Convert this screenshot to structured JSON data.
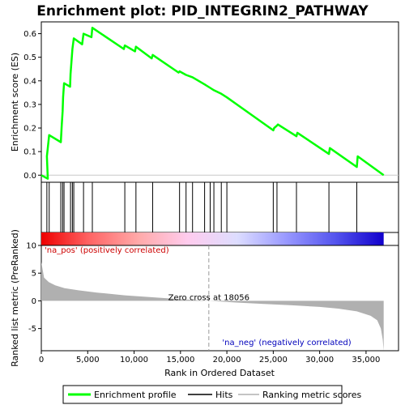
{
  "chart_data": {
    "type": "line",
    "title": "Enrichment plot: PID_INTEGRIN2_PATHWAY",
    "xlabel": "Rank in Ordered Dataset",
    "es_panel": {
      "ylabel": "Enrichment score (ES)",
      "ylim": [
        -0.03,
        0.65
      ],
      "yticks": [
        0.0,
        0.1,
        0.2,
        0.3,
        0.4,
        0.5,
        0.6
      ],
      "ytick_labels": [
        "0.0",
        "0.1",
        "0.2",
        "0.3",
        "0.4",
        "0.5",
        "0.6"
      ],
      "series": [
        {
          "name": "Enrichment profile",
          "color": "#00ff00",
          "x": [
            0,
            700,
            600,
            850,
            2100,
            2200,
            2300,
            2350,
            2450,
            3100,
            3150,
            3250,
            3350,
            3500,
            4400,
            4550,
            5400,
            5500,
            8900,
            9000,
            10100,
            10200,
            11900,
            12000,
            14800,
            14900,
            15600,
            16300,
            17600,
            18200,
            18600,
            19400,
            20000,
            25000,
            25100,
            25400,
            25500,
            27500,
            27600,
            31000,
            31100,
            34000,
            34100,
            36900
          ],
          "y": [
            0.0,
            -0.015,
            0.08,
            0.17,
            0.14,
            0.21,
            0.27,
            0.33,
            0.39,
            0.375,
            0.43,
            0.48,
            0.535,
            0.58,
            0.555,
            0.6,
            0.585,
            0.625,
            0.535,
            0.55,
            0.525,
            0.545,
            0.495,
            0.51,
            0.435,
            0.44,
            0.425,
            0.415,
            0.385,
            0.37,
            0.36,
            0.345,
            0.33,
            0.19,
            0.2,
            0.21,
            0.215,
            0.165,
            0.18,
            0.09,
            0.115,
            0.035,
            0.08,
            0.0
          ]
        }
      ]
    },
    "hits": {
      "name": "Hits",
      "color": "#000000",
      "positions": [
        600,
        850,
        2100,
        2300,
        2450,
        3150,
        3350,
        3500,
        4550,
        5500,
        9000,
        10200,
        12000,
        14900,
        15600,
        16300,
        17600,
        18200,
        18600,
        19400,
        20000,
        25000,
        25400,
        27500,
        31000,
        34000
      ]
    },
    "rank_panel": {
      "ylabel": "Ranked list metric (PreRanked)",
      "ylim": [
        -9,
        10
      ],
      "yticks": [
        -5,
        0,
        5,
        10
      ],
      "ytick_labels": [
        "-5",
        "0",
        "5",
        "10"
      ],
      "series_name": "Ranking metric scores",
      "fill_color": "#b0b0b0",
      "x": [
        0,
        300,
        800,
        1500,
        2500,
        4000,
        6000,
        9000,
        12000,
        15000,
        18056,
        21000,
        24000,
        27000,
        30000,
        32000,
        34000,
        35500,
        36200,
        36600,
        36800,
        36900
      ],
      "y": [
        7.0,
        4.2,
        3.4,
        2.8,
        2.3,
        1.9,
        1.5,
        1.0,
        0.65,
        0.3,
        0.0,
        -0.3,
        -0.55,
        -0.8,
        -1.1,
        -1.4,
        -1.9,
        -2.7,
        -3.5,
        -5.0,
        -7.0,
        -9.0
      ],
      "zero_cross": 18056,
      "zero_cross_label": "Zero cross at 18056",
      "pos_label": "'na_pos' (positively correlated)",
      "neg_label": "'na_neg' (negatively correlated)",
      "pos_label_color": "#cc0000",
      "neg_label_color": "#0000bb"
    },
    "xlim": [
      0,
      38500
    ],
    "xticks": [
      0,
      5000,
      10000,
      15000,
      20000,
      25000,
      30000,
      35000
    ],
    "xtick_labels": [
      "0",
      "5,000",
      "10,000",
      "15,000",
      "20,000",
      "25,000",
      "30,000",
      "35,000"
    ],
    "gradient_bar": {
      "x_end": 36900,
      "stops": [
        "#ee0000",
        "#ff6666",
        "#ffaaaa",
        "#ffccee",
        "#ddddff",
        "#9999ff",
        "#5555ee",
        "#1100cc"
      ]
    },
    "legend": {
      "position": "bottom",
      "items": [
        {
          "label": "Enrichment profile",
          "color": "#00ff00"
        },
        {
          "label": "Hits",
          "color": "#000000"
        },
        {
          "label": "Ranking metric scores",
          "color": "#b0b0b0"
        }
      ]
    }
  }
}
